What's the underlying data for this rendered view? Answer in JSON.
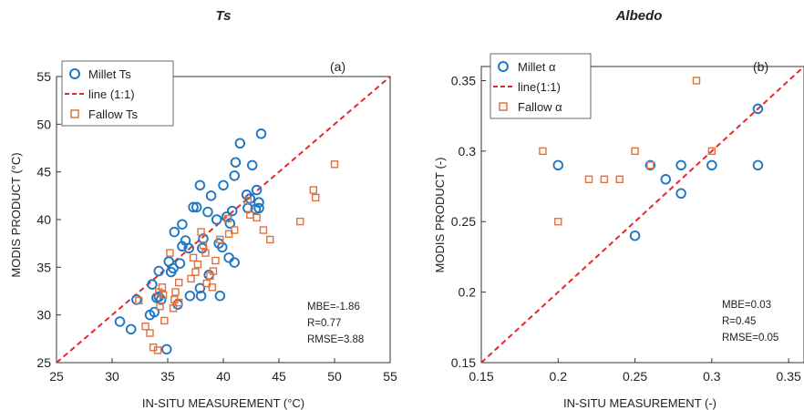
{
  "colors": {
    "millet": "#1f77c4",
    "fallow": "#e2703a",
    "line": "#e8262b",
    "axis": "#333333"
  },
  "chart_data": [
    {
      "type": "scatter",
      "title": "Ts",
      "panel_label": "(a)",
      "xlabel": "IN-SITU MEASUREMENT (°C)",
      "ylabel": "MODIS PRODUCT (°C)",
      "xlim": [
        25,
        55
      ],
      "ylim": [
        25,
        55
      ],
      "xticks": [
        "25",
        "30",
        "35",
        "40",
        "45",
        "50",
        "55"
      ],
      "yticks": [
        "25",
        "30",
        "35",
        "40",
        "45",
        "50",
        "55"
      ],
      "legend_position": "top-left",
      "series": [
        {
          "name": "Millet Ts",
          "marker": "circle",
          "points": [
            [
              30.7,
              29.3
            ],
            [
              31.7,
              28.5
            ],
            [
              32.2,
              31.6
            ],
            [
              33.4,
              30.0
            ],
            [
              33.6,
              33.2
            ],
            [
              33.8,
              30.3
            ],
            [
              34.0,
              31.8
            ],
            [
              34.2,
              31.9
            ],
            [
              34.4,
              31.6
            ],
            [
              34.2,
              34.6
            ],
            [
              34.9,
              26.4
            ],
            [
              35.1,
              35.6
            ],
            [
              35.3,
              34.5
            ],
            [
              35.6,
              38.7
            ],
            [
              35.5,
              34.9
            ],
            [
              35.9,
              31.1
            ],
            [
              36.1,
              35.4
            ],
            [
              36.3,
              37.2
            ],
            [
              36.6,
              37.8
            ],
            [
              36.3,
              39.5
            ],
            [
              36.9,
              37.0
            ],
            [
              37.0,
              32.0
            ],
            [
              37.3,
              41.3
            ],
            [
              37.6,
              41.3
            ],
            [
              37.9,
              43.6
            ],
            [
              37.9,
              32.8
            ],
            [
              38.0,
              32.0
            ],
            [
              38.1,
              37.0
            ],
            [
              38.2,
              38.0
            ],
            [
              38.6,
              40.8
            ],
            [
              38.7,
              34.2
            ],
            [
              38.9,
              42.5
            ],
            [
              39.4,
              40.0
            ],
            [
              39.6,
              37.5
            ],
            [
              39.7,
              32.0
            ],
            [
              39.9,
              37.1
            ],
            [
              40.0,
              43.6
            ],
            [
              40.3,
              40.3
            ],
            [
              40.5,
              36.0
            ],
            [
              40.6,
              39.6
            ],
            [
              40.8,
              40.9
            ],
            [
              41.0,
              35.5
            ],
            [
              41.0,
              44.6
            ],
            [
              41.1,
              46.0
            ],
            [
              41.5,
              48.0
            ],
            [
              42.1,
              42.6
            ],
            [
              42.2,
              41.2
            ],
            [
              42.4,
              42.2
            ],
            [
              42.6,
              45.7
            ],
            [
              42.9,
              41.1
            ],
            [
              43.0,
              43.1
            ],
            [
              43.2,
              41.8
            ],
            [
              43.2,
              41.2
            ],
            [
              43.4,
              49.0
            ]
          ]
        },
        {
          "name": "line (1:1)",
          "marker": "dashed-line",
          "points": [
            [
              25,
              25
            ],
            [
              55,
              55
            ]
          ]
        },
        {
          "name": "Fallow Ts",
          "marker": "square",
          "points": [
            [
              32.4,
              31.5
            ],
            [
              33.0,
              28.8
            ],
            [
              33.4,
              28.1
            ],
            [
              33.7,
              26.6
            ],
            [
              34.1,
              26.3
            ],
            [
              34.2,
              32.4
            ],
            [
              34.3,
              30.9
            ],
            [
              34.5,
              32.9
            ],
            [
              34.6,
              32.1
            ],
            [
              34.7,
              29.4
            ],
            [
              35.2,
              36.5
            ],
            [
              35.5,
              30.7
            ],
            [
              35.6,
              31.6
            ],
            [
              35.7,
              32.4
            ],
            [
              36.0,
              31.3
            ],
            [
              36.0,
              33.4
            ],
            [
              37.1,
              33.8
            ],
            [
              37.3,
              36.0
            ],
            [
              37.5,
              34.5
            ],
            [
              37.7,
              35.3
            ],
            [
              38.0,
              38.7
            ],
            [
              38.2,
              37.3
            ],
            [
              38.4,
              36.5
            ],
            [
              38.5,
              33.3
            ],
            [
              38.8,
              34.1
            ],
            [
              39.0,
              32.9
            ],
            [
              39.1,
              34.6
            ],
            [
              39.3,
              35.7
            ],
            [
              39.7,
              37.9
            ],
            [
              40.4,
              40.1
            ],
            [
              40.5,
              38.5
            ],
            [
              41.0,
              38.9
            ],
            [
              42.2,
              42.0
            ],
            [
              42.4,
              40.5
            ],
            [
              43.0,
              40.2
            ],
            [
              43.6,
              38.9
            ],
            [
              44.2,
              37.9
            ],
            [
              46.9,
              39.8
            ],
            [
              48.1,
              43.1
            ],
            [
              48.3,
              42.3
            ],
            [
              50.0,
              45.8
            ]
          ]
        }
      ],
      "annotations": [
        "MBE=-1.86",
        "R=0.77",
        "RMSE=3.88"
      ]
    },
    {
      "type": "scatter",
      "title": "Albedo",
      "panel_label": "(b)",
      "xlabel": "IN-SITU MEASUREMENT (-)",
      "ylabel": "MODIS PRODUCT (-)",
      "xlim": [
        0.15,
        0.36
      ],
      "ylim": [
        0.15,
        0.36
      ],
      "xticks": [
        "0.15",
        "0.2",
        "0.25",
        "0.3",
        "0.35"
      ],
      "yticks": [
        "0.15",
        "0.2",
        "0.25",
        "0.3",
        "0.35"
      ],
      "legend_position": "top-left",
      "series": [
        {
          "name": "Millet α",
          "marker": "circle",
          "points": [
            [
              0.2,
              0.29
            ],
            [
              0.25,
              0.24
            ],
            [
              0.26,
              0.29
            ],
            [
              0.27,
              0.28
            ],
            [
              0.28,
              0.29
            ],
            [
              0.28,
              0.27
            ],
            [
              0.3,
              0.29
            ],
            [
              0.33,
              0.33
            ],
            [
              0.33,
              0.29
            ]
          ]
        },
        {
          "name": "line(1:1)",
          "marker": "dashed-line",
          "points": [
            [
              0.15,
              0.15
            ],
            [
              0.36,
              0.36
            ]
          ]
        },
        {
          "name": "Fallow α",
          "marker": "square",
          "points": [
            [
              0.19,
              0.3
            ],
            [
              0.2,
              0.25
            ],
            [
              0.22,
              0.28
            ],
            [
              0.23,
              0.28
            ],
            [
              0.24,
              0.28
            ],
            [
              0.25,
              0.3
            ],
            [
              0.26,
              0.29
            ],
            [
              0.29,
              0.35
            ],
            [
              0.3,
              0.3
            ]
          ]
        }
      ],
      "annotations": [
        "MBE=0.03",
        "R=0.45",
        "RMSE=0.05"
      ]
    }
  ]
}
